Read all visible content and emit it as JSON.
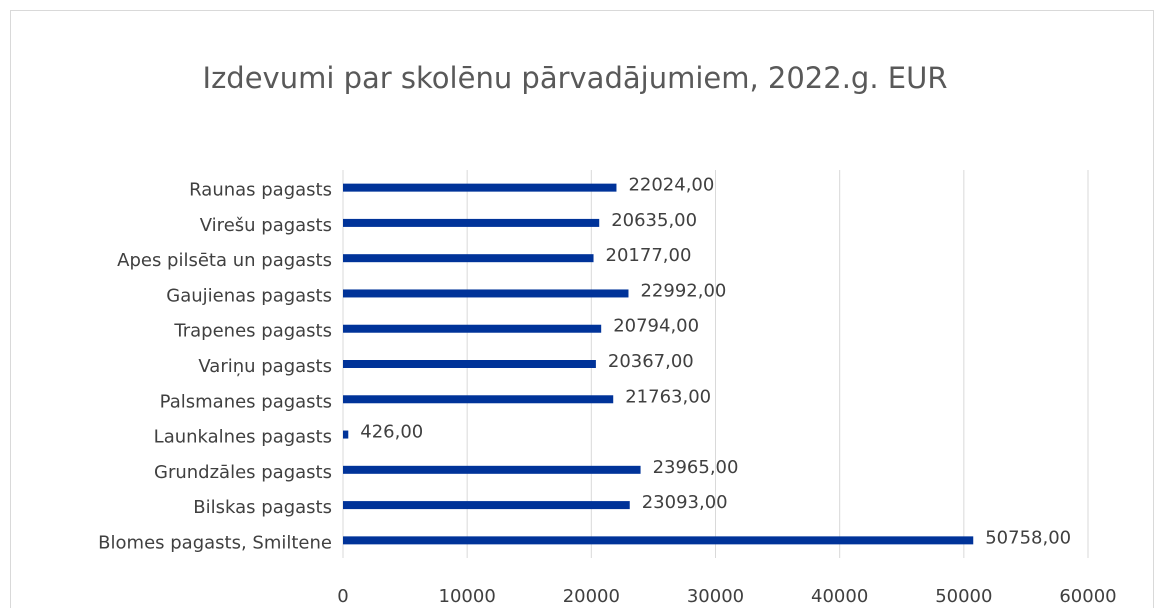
{
  "chart_data": {
    "type": "bar",
    "orientation": "horizontal",
    "title": "Izdevumi par skolēnu pārvadājumiem, 2022.g. EUR",
    "categories": [
      "Raunas pagasts",
      "Virešu pagasts",
      "Apes pilsēta un pagasts",
      "Gaujienas pagasts",
      "Trapenes pagasts",
      "Variņu pagasts",
      "Palsmanes pagasts",
      "Launkalnes pagasts",
      "Grundzāles pagasts",
      "Bilskas pagasts",
      "Blomes pagasts, Smiltene"
    ],
    "values": [
      22024,
      20635,
      20177,
      22992,
      20794,
      20367,
      21763,
      426,
      23965,
      23093,
      50758
    ],
    "value_labels": [
      "22024,00",
      "20635,00",
      "20177,00",
      "22992,00",
      "20794,00",
      "20367,00",
      "21763,00",
      "426,00",
      "23965,00",
      "23093,00",
      "50758,00"
    ],
    "color": "#003399",
    "xlim": [
      0,
      60000
    ],
    "xticks": [
      0,
      10000,
      20000,
      30000,
      40000,
      50000,
      60000
    ],
    "grid": true
  }
}
